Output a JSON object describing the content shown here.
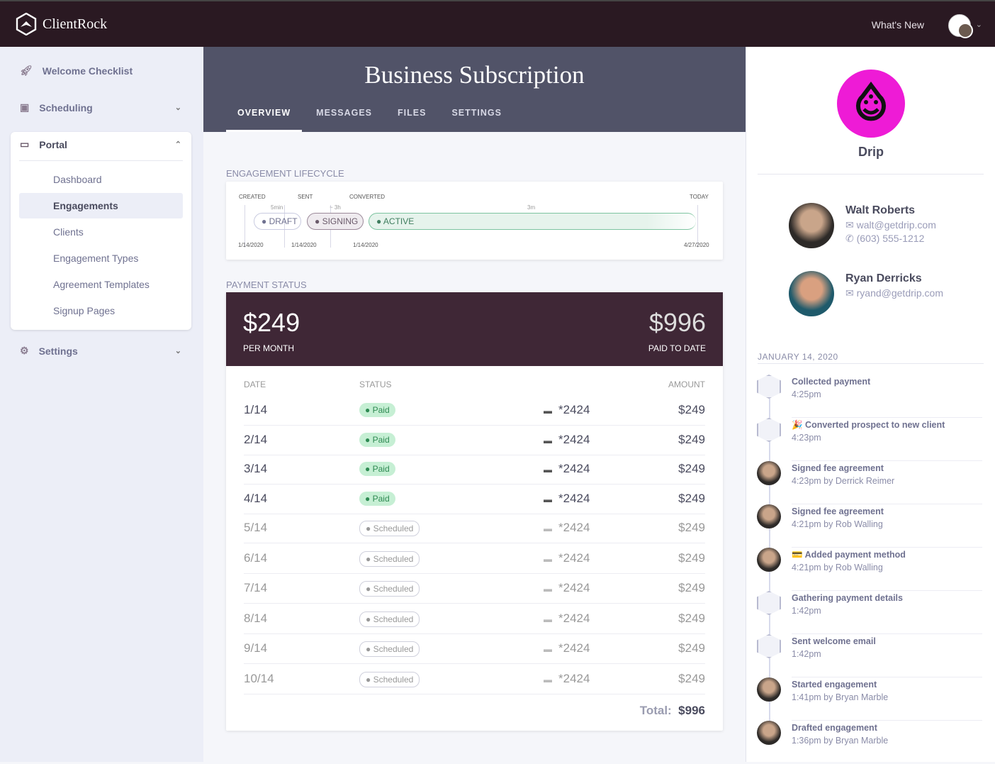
{
  "app": {
    "name": "ClientRock",
    "whats_new": "What's New"
  },
  "sidebar": {
    "welcome": "Welcome Checklist",
    "scheduling": "Scheduling",
    "portal": "Portal",
    "settings": "Settings",
    "portal_items": [
      "Dashboard",
      "Engagements",
      "Clients",
      "Engagement Types",
      "Agreement Templates",
      "Signup Pages"
    ]
  },
  "main": {
    "title": "Business Subscription",
    "tabs": [
      "OVERVIEW",
      "MESSAGES",
      "FILES",
      "SETTINGS"
    ],
    "lifecycle": {
      "heading": "ENGAGEMENT LIFECYCLE",
      "created": "CREATED",
      "sent": "SENT",
      "converted": "CONVERTED",
      "today": "TODAY",
      "d1": "5min",
      "d2": "~ 3h",
      "d3": "3m",
      "draft": "DRAFT",
      "signing": "SIGNING",
      "active": "ACTIVE",
      "date1": "1/14/2020",
      "date2": "1/14/2020",
      "date3": "1/14/2020",
      "date4": "4/27/2020"
    },
    "payment": {
      "heading": "PAYMENT STATUS",
      "monthly": "$249",
      "monthly_label": "PER MONTH",
      "paid": "$996",
      "paid_label": "PAID TO DATE",
      "cols": [
        "DATE",
        "STATUS",
        "AMOUNT"
      ],
      "rows": [
        {
          "date": "1/14",
          "status": "Paid",
          "card": "*2424",
          "amount": "$249"
        },
        {
          "date": "2/14",
          "status": "Paid",
          "card": "*2424",
          "amount": "$249"
        },
        {
          "date": "3/14",
          "status": "Paid",
          "card": "*2424",
          "amount": "$249"
        },
        {
          "date": "4/14",
          "status": "Paid",
          "card": "*2424",
          "amount": "$249"
        },
        {
          "date": "5/14",
          "status": "Scheduled",
          "card": "*2424",
          "amount": "$249"
        },
        {
          "date": "6/14",
          "status": "Scheduled",
          "card": "*2424",
          "amount": "$249"
        },
        {
          "date": "7/14",
          "status": "Scheduled",
          "card": "*2424",
          "amount": "$249"
        },
        {
          "date": "8/14",
          "status": "Scheduled",
          "card": "*2424",
          "amount": "$249"
        },
        {
          "date": "9/14",
          "status": "Scheduled",
          "card": "*2424",
          "amount": "$249"
        },
        {
          "date": "10/14",
          "status": "Scheduled",
          "card": "*2424",
          "amount": "$249"
        }
      ],
      "total_label": "Total:",
      "total": "$996"
    }
  },
  "client": {
    "name": "Drip",
    "brand_color": "#ee1bd6",
    "contacts": [
      {
        "name": "Walt Roberts",
        "email": "walt@getdrip.com",
        "phone": "(603) 555-1212"
      },
      {
        "name": "Ryan Derricks",
        "email": "ryand@getdrip.com"
      }
    ],
    "date": "JANUARY 14, 2020",
    "activity": [
      {
        "title": "Collected payment",
        "meta": "4:25pm",
        "icon": "logo"
      },
      {
        "title": "🎉 Converted prospect to new client",
        "meta": "4:23pm",
        "icon": "logo"
      },
      {
        "title": "Signed fee agreement",
        "meta": "4:23pm by Derrick Reimer",
        "icon": "avatar"
      },
      {
        "title": "Signed fee agreement",
        "meta": "4:21pm by Rob Walling",
        "icon": "avatar"
      },
      {
        "title": "💳 Added payment method",
        "meta": "4:21pm by Rob Walling",
        "icon": "avatar"
      },
      {
        "title": "Gathering payment details",
        "meta": "1:42pm",
        "icon": "logo"
      },
      {
        "title": "Sent welcome email",
        "meta": "1:42pm",
        "icon": "logo"
      },
      {
        "title": "Started engagement",
        "meta": "1:41pm by Bryan Marble",
        "icon": "avatar"
      },
      {
        "title": "Drafted engagement",
        "meta": "1:36pm by Bryan Marble",
        "icon": "avatar"
      }
    ]
  }
}
